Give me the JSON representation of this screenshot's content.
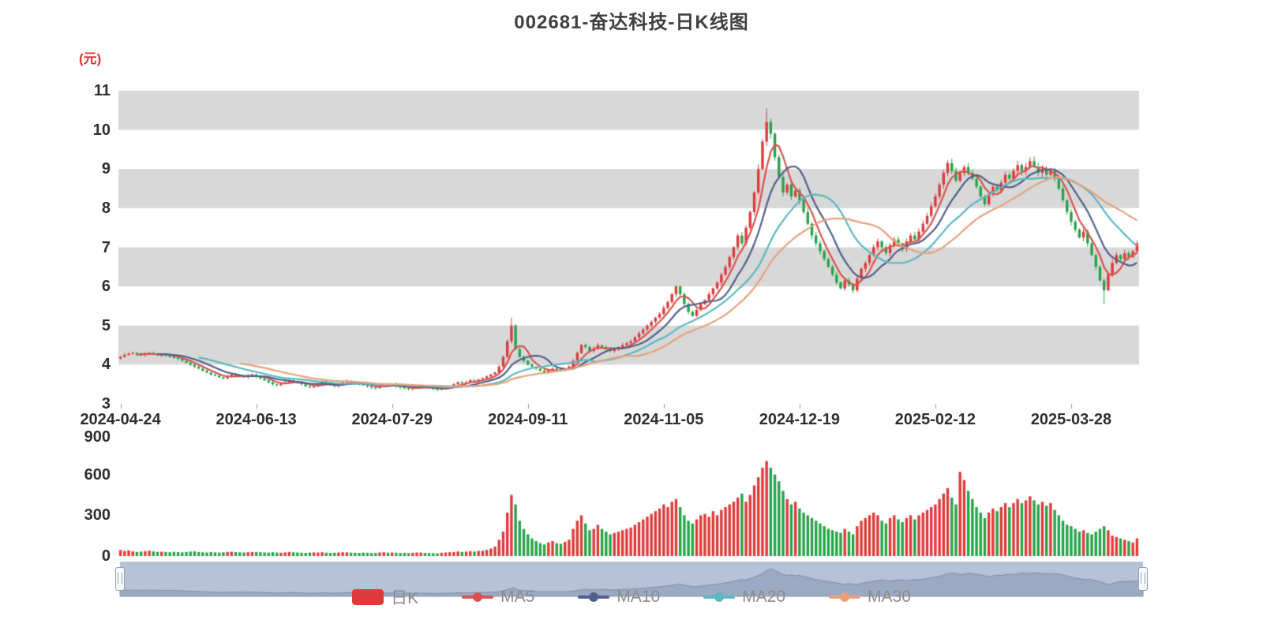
{
  "title": "002681-奋达科技-日K线图",
  "y_axis_unit": "(元)",
  "legend": {
    "items": [
      {
        "key": "daily-k",
        "label": "日K",
        "type": "rect",
        "color": "#dd3b3b"
      },
      {
        "key": "ma5",
        "label": "MA5",
        "type": "line",
        "color": "#d9544f"
      },
      {
        "key": "ma10",
        "label": "MA10",
        "type": "line",
        "color": "#51618c"
      },
      {
        "key": "ma20",
        "label": "MA20",
        "type": "line",
        "color": "#5cb8c2"
      },
      {
        "key": "ma30",
        "label": "MA30",
        "type": "line",
        "color": "#e7a27c"
      }
    ]
  },
  "colors": {
    "up": "#dd3b3b",
    "down": "#27a348",
    "ma5": "#d9544f",
    "ma10": "#51618c",
    "ma20": "#5cb8c2",
    "ma30": "#e7a27c",
    "stripe": "#d8d8d8",
    "axis_text": "#2f2f2f",
    "legend_text": "#8c8c8c",
    "unit_text": "#e03131",
    "datazoom_track": "#b7c2d8",
    "datazoom_fill": "rgba(127,144,171,0.5)",
    "datazoom_line": "#7f90ab"
  },
  "chart_data": {
    "type": "candlestick",
    "title": "002681-奋达科技-日K线图",
    "ylabel": "(元)",
    "ylim": [
      3,
      11
    ],
    "price_ticks": [
      11,
      10,
      9,
      8,
      7,
      6,
      5,
      4,
      3
    ],
    "volume_ylim": [
      0,
      900
    ],
    "volume_ticks": [
      900,
      600,
      300,
      0
    ],
    "x_tick_labels": [
      "2024-04-24",
      "2024-06-13",
      "2024-07-29",
      "2024-09-11",
      "2024-11-05",
      "2024-12-19",
      "2025-02-12",
      "2025-03-28"
    ],
    "x_tick_indices": [
      0,
      33,
      66,
      99,
      132,
      165,
      198,
      231
    ],
    "ma_periods": [
      5,
      10,
      20,
      30
    ],
    "closes": [
      4.2,
      4.25,
      4.28,
      4.3,
      4.26,
      4.24,
      4.28,
      4.3,
      4.27,
      4.25,
      4.26,
      4.24,
      4.2,
      4.18,
      4.15,
      4.1,
      4.05,
      4.0,
      3.95,
      3.9,
      3.85,
      3.8,
      3.75,
      3.72,
      3.68,
      3.65,
      3.7,
      3.75,
      3.72,
      3.7,
      3.68,
      3.72,
      3.75,
      3.7,
      3.65,
      3.6,
      3.55,
      3.5,
      3.48,
      3.52,
      3.55,
      3.6,
      3.58,
      3.55,
      3.5,
      3.45,
      3.42,
      3.45,
      3.5,
      3.55,
      3.52,
      3.48,
      3.45,
      3.5,
      3.55,
      3.58,
      3.55,
      3.52,
      3.5,
      3.48,
      3.45,
      3.42,
      3.4,
      3.45,
      3.5,
      3.48,
      3.5,
      3.45,
      3.42,
      3.4,
      3.38,
      3.4,
      3.42,
      3.45,
      3.43,
      3.4,
      3.38,
      3.36,
      3.4,
      3.42,
      3.45,
      3.5,
      3.55,
      3.52,
      3.55,
      3.6,
      3.58,
      3.62,
      3.65,
      3.7,
      3.75,
      3.8,
      3.95,
      4.2,
      4.6,
      5.0,
      4.4,
      4.2,
      4.1,
      4.0,
      3.95,
      3.9,
      3.85,
      3.8,
      3.85,
      3.9,
      3.88,
      3.85,
      3.9,
      3.95,
      4.1,
      4.3,
      4.5,
      4.45,
      4.35,
      4.4,
      4.5,
      4.45,
      4.4,
      4.35,
      4.4,
      4.45,
      4.5,
      4.55,
      4.6,
      4.7,
      4.8,
      4.9,
      5.0,
      5.1,
      5.2,
      5.3,
      5.45,
      5.6,
      5.8,
      6.0,
      5.8,
      5.55,
      5.35,
      5.25,
      5.4,
      5.55,
      5.65,
      5.8,
      5.95,
      6.1,
      6.3,
      6.5,
      6.75,
      7.0,
      7.3,
      7.1,
      7.5,
      7.9,
      8.4,
      9.0,
      9.7,
      10.2,
      9.9,
      9.3,
      8.8,
      8.4,
      8.6,
      8.3,
      8.45,
      8.2,
      7.9,
      7.6,
      7.3,
      7.1,
      6.9,
      6.7,
      6.5,
      6.3,
      6.1,
      5.95,
      6.15,
      6.05,
      5.9,
      6.2,
      6.45,
      6.6,
      6.8,
      7.0,
      7.15,
      7.0,
      6.85,
      7.05,
      7.2,
      7.1,
      6.95,
      7.15,
      7.3,
      7.2,
      7.4,
      7.6,
      7.8,
      8.05,
      8.3,
      8.6,
      8.9,
      9.15,
      8.95,
      8.7,
      8.9,
      9.05,
      8.9,
      8.75,
      8.55,
      8.3,
      8.1,
      8.35,
      8.55,
      8.45,
      8.65,
      8.85,
      8.75,
      8.95,
      9.1,
      8.95,
      9.05,
      9.2,
      9.05,
      8.9,
      9.0,
      8.85,
      8.95,
      8.75,
      8.5,
      8.2,
      7.9,
      7.65,
      7.45,
      7.25,
      7.4,
      7.1,
      6.8,
      6.5,
      6.15,
      5.9,
      6.3,
      6.6,
      6.8,
      6.7,
      6.85,
      6.75,
      6.9,
      7.1
    ],
    "volumes": [
      45,
      38,
      42,
      35,
      30,
      33,
      36,
      40,
      34,
      30,
      32,
      30,
      28,
      31,
      29,
      27,
      30,
      33,
      35,
      30,
      28,
      26,
      30,
      27,
      25,
      28,
      30,
      32,
      29,
      27,
      26,
      28,
      30,
      30,
      28,
      26,
      25,
      28,
      26,
      24,
      27,
      30,
      28,
      26,
      24,
      23,
      25,
      27,
      26,
      28,
      25,
      23,
      24,
      26,
      28,
      27,
      25,
      24,
      23,
      25,
      24,
      22,
      23,
      26,
      28,
      25,
      26,
      24,
      22,
      23,
      21,
      24,
      26,
      25,
      23,
      22,
      21,
      20,
      24,
      26,
      28,
      30,
      34,
      30,
      32,
      36,
      33,
      38,
      40,
      45,
      55,
      70,
      120,
      180,
      320,
      450,
      380,
      260,
      200,
      160,
      130,
      110,
      95,
      85,
      100,
      110,
      95,
      90,
      105,
      120,
      200,
      260,
      300,
      240,
      190,
      200,
      230,
      200,
      180,
      160,
      170,
      180,
      190,
      200,
      210,
      230,
      250,
      270,
      290,
      310,
      330,
      350,
      380,
      360,
      400,
      420,
      360,
      300,
      260,
      240,
      270,
      300,
      310,
      290,
      330,
      300,
      340,
      360,
      380,
      400,
      430,
      460,
      400,
      450,
      520,
      580,
      650,
      700,
      650,
      600,
      550,
      480,
      420,
      380,
      400,
      350,
      320,
      300,
      280,
      260,
      240,
      220,
      200,
      190,
      180,
      170,
      200,
      180,
      160,
      220,
      260,
      280,
      300,
      320,
      300,
      260,
      240,
      280,
      300,
      270,
      250,
      280,
      300,
      270,
      300,
      320,
      340,
      360,
      380,
      420,
      460,
      500,
      430,
      380,
      620,
      560,
      480,
      420,
      360,
      320,
      280,
      320,
      350,
      330,
      360,
      390,
      360,
      390,
      420,
      390,
      410,
      440,
      410,
      380,
      400,
      370,
      390,
      340,
      300,
      260,
      230,
      220,
      200,
      180,
      190,
      170,
      160,
      180,
      200,
      220,
      190,
      150,
      140,
      130,
      120,
      110,
      100,
      130
    ],
    "extremes": {
      "95": {
        "high": 5.2
      },
      "157": {
        "high": 10.55
      },
      "239": {
        "low": 5.55
      }
    }
  }
}
